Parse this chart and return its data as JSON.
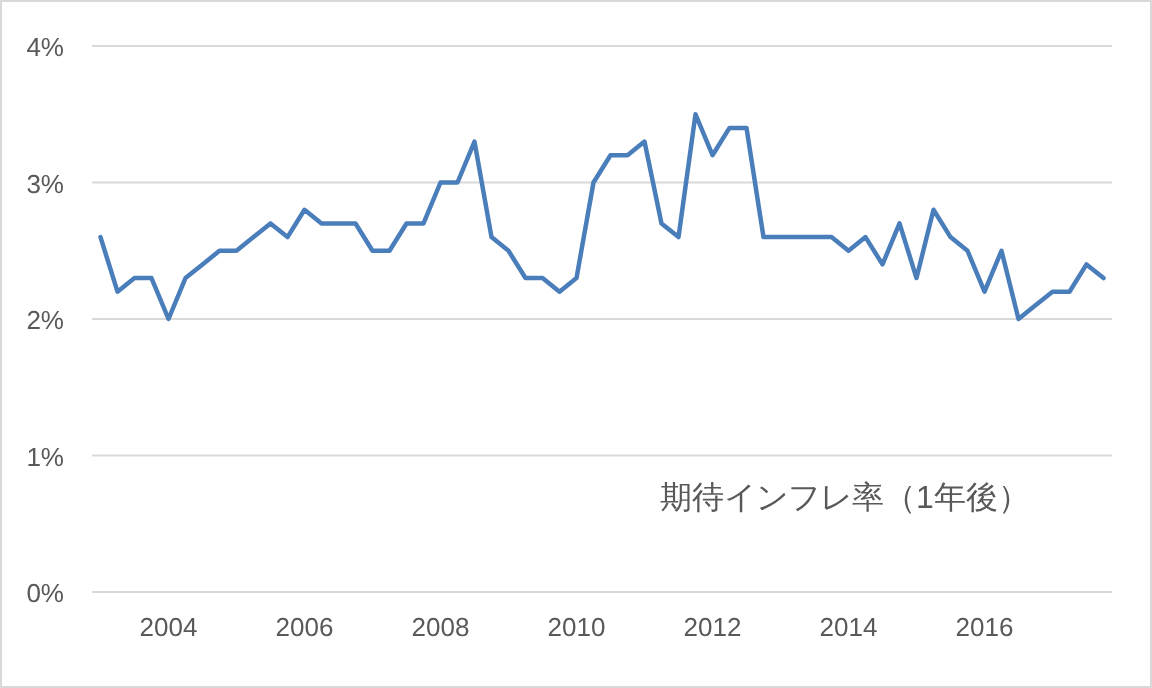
{
  "chart_data": {
    "type": "line",
    "categories": [
      null,
      null,
      null,
      null,
      "2004",
      null,
      null,
      null,
      null,
      null,
      null,
      null,
      "2006",
      null,
      null,
      null,
      null,
      null,
      null,
      null,
      "2008",
      null,
      null,
      null,
      null,
      null,
      null,
      null,
      "2010",
      null,
      null,
      null,
      null,
      null,
      null,
      null,
      "2012",
      null,
      null,
      null,
      null,
      null,
      null,
      null,
      "2014",
      null,
      null,
      null,
      null,
      null,
      null,
      null,
      "2016",
      null,
      null,
      null,
      null,
      null,
      null,
      null
    ],
    "series": [
      {
        "color": "#4a7ebb",
        "values": [
          2.6,
          2.2,
          2.3,
          2.3,
          2.0,
          2.3,
          2.4,
          2.5,
          2.5,
          2.6,
          2.7,
          2.6,
          2.8,
          2.7,
          2.7,
          2.7,
          2.5,
          2.5,
          2.7,
          2.7,
          3.0,
          3.0,
          3.3,
          2.6,
          2.5,
          2.3,
          2.3,
          2.2,
          2.3,
          3.0,
          3.2,
          3.2,
          3.3,
          2.7,
          2.6,
          3.5,
          3.2,
          3.4,
          3.4,
          2.6,
          2.6,
          2.6,
          2.6,
          2.6,
          2.5,
          2.6,
          2.4,
          2.7,
          2.3,
          2.8,
          2.6,
          2.5,
          2.2,
          2.5,
          2.0,
          2.1,
          2.2,
          2.2,
          2.4,
          2.3
        ]
      }
    ],
    "ylim": [
      0,
      4
    ],
    "yticks": [
      {
        "value": 0,
        "label": "0%"
      },
      {
        "value": 1,
        "label": "1%"
      },
      {
        "value": 2,
        "label": "2%"
      },
      {
        "value": 3,
        "label": "3%"
      },
      {
        "value": 4,
        "label": "4%"
      }
    ],
    "grid": "y",
    "annotations": [
      "期待インフレ率（1年後）"
    ]
  }
}
